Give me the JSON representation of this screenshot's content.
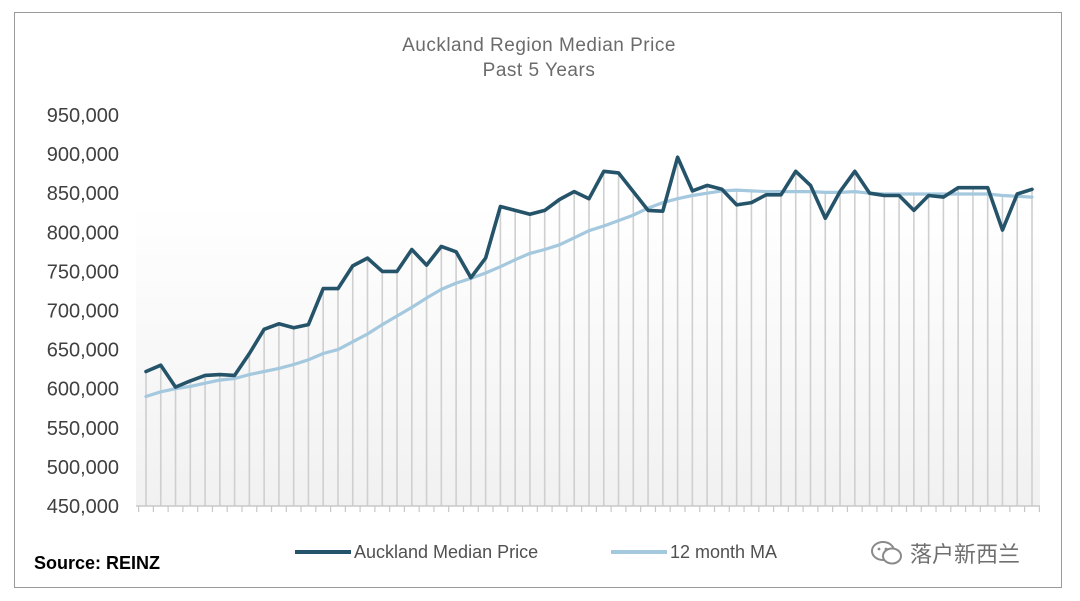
{
  "chart_data": {
    "type": "line",
    "title": "Auckland Region Median Price",
    "subtitle": "Past 5 Years",
    "xlabel": "",
    "ylabel": "",
    "ylim": [
      450000,
      950000
    ],
    "yticks": [
      "950,000",
      "900,000",
      "850,000",
      "800,000",
      "750,000",
      "700,000",
      "650,000",
      "600,000",
      "550,000",
      "500,000",
      "450,000"
    ],
    "grid": false,
    "legend_position": "bottom",
    "series": [
      {
        "name": "Auckland Median Price",
        "color": "#25546a",
        "values": [
          622000,
          630000,
          602000,
          610000,
          617000,
          618000,
          617000,
          645000,
          676000,
          683000,
          678000,
          682000,
          728000,
          728000,
          757000,
          767000,
          750000,
          750000,
          778000,
          758000,
          782000,
          775000,
          742000,
          767000,
          833000,
          828000,
          823000,
          828000,
          842000,
          852000,
          843000,
          878000,
          876000,
          852000,
          828000,
          827000,
          896000,
          853000,
          860000,
          855000,
          835000,
          838000,
          848000,
          848000,
          878000,
          860000,
          818000,
          852000,
          878000,
          850000,
          847000,
          847000,
          828000,
          847000,
          845000,
          857000,
          857000,
          857000,
          803000,
          849000,
          855000
        ]
      },
      {
        "name": "12 month MA",
        "color": "#a4c8de",
        "values": [
          590000,
          596000,
          600000,
          603000,
          607000,
          611000,
          613000,
          618000,
          622000,
          626000,
          631000,
          637000,
          645000,
          650000,
          660000,
          670000,
          682000,
          693000,
          704000,
          716000,
          727000,
          735000,
          741000,
          748000,
          756000,
          765000,
          773000,
          778000,
          784000,
          793000,
          802000,
          808000,
          815000,
          822000,
          831000,
          838000,
          843000,
          847000,
          850000,
          853000,
          854000,
          853000,
          852000,
          852000,
          852000,
          852000,
          851000,
          851000,
          852000,
          850000,
          849000,
          849000,
          849000,
          849000,
          849000,
          849000,
          849000,
          849000,
          847000,
          846000,
          845000
        ]
      }
    ]
  },
  "source": "Source:  REINZ",
  "watermark": "落户新西兰"
}
